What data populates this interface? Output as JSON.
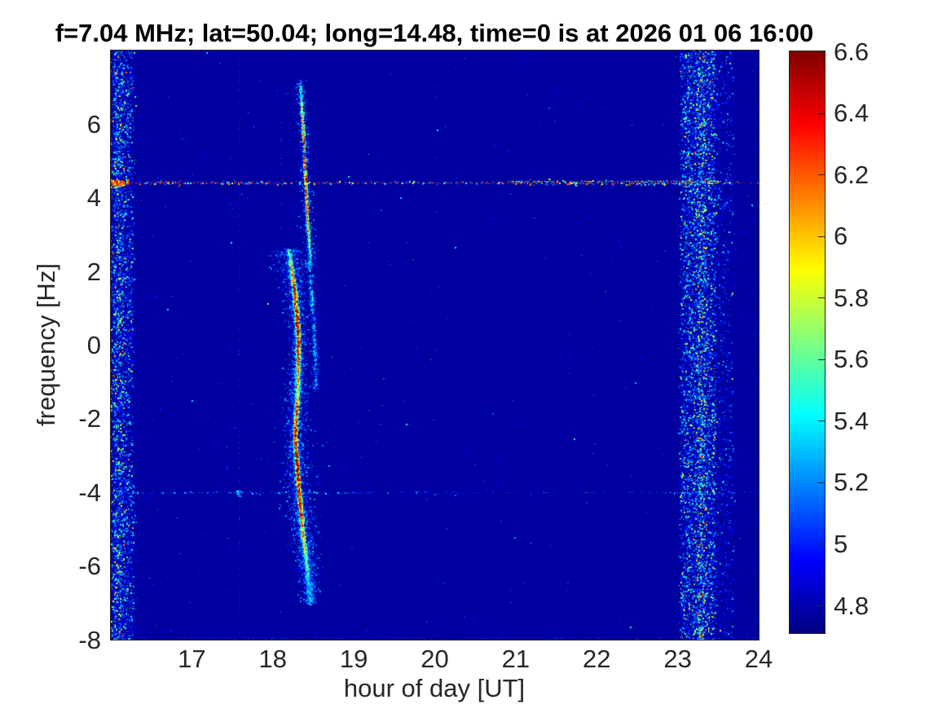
{
  "chart_data": {
    "type": "heatmap",
    "title": "f=7.04 MHz;  lat=50.04; long=14.48, time=0 is at 2026 01 06 16:00",
    "xlabel": "hour of day [UT]",
    "ylabel": "frequency [Hz]",
    "xlim": [
      16,
      24
    ],
    "ylim": [
      -8,
      8
    ],
    "xticks": [
      17,
      18,
      19,
      20,
      21,
      22,
      23,
      24
    ],
    "yticks": [
      6,
      4,
      2,
      0,
      -2,
      -4,
      -6,
      -8
    ],
    "grid": false,
    "colormap": "jet",
    "background_value": 4.77,
    "colorbar": {
      "position": "right",
      "min": 4.71,
      "max": 6.6,
      "ticks": [
        6.6,
        6.4,
        6.2,
        6,
        5.8,
        5.6,
        5.4,
        5.2,
        5,
        4.8
      ]
    },
    "features": [
      {
        "kind": "noise",
        "name": "background-speckle",
        "n": 2600,
        "v": [
          4.78,
          5.02
        ]
      },
      {
        "kind": "noise",
        "name": "background-speckle-bright",
        "n": 130,
        "v": [
          5.0,
          5.5
        ]
      },
      {
        "kind": "vband",
        "name": "noise-band-left",
        "x0": 16.0,
        "x1": 16.27,
        "n": 4200,
        "vmin": 4.82,
        "escale": 0.28,
        "hot_p": 0.03,
        "hot_v": [
          5.6,
          0.7
        ]
      },
      {
        "kind": "vband",
        "name": "noise-band-left-core",
        "x0": 16.04,
        "x1": 16.13,
        "n": 800,
        "vmin": 4.95,
        "escale": 0.35,
        "hot_p": 0.08,
        "hot_v": [
          5.6,
          0.6
        ]
      },
      {
        "kind": "vband",
        "name": "noise-band-right",
        "x0": 23.03,
        "x1": 23.46,
        "n": 7800,
        "vmin": 4.82,
        "escale": 0.3,
        "hot_p": 0.05,
        "hot_v": [
          5.5,
          0.7
        ]
      },
      {
        "kind": "vband",
        "name": "noise-band-right-core",
        "x0": 23.24,
        "x1": 23.33,
        "n": 900,
        "vmin": 5.0,
        "escale": 0.4,
        "hot_p": 0.12,
        "hot_v": [
          5.7,
          0.6
        ]
      },
      {
        "kind": "vband",
        "name": "noise-band-right-halo",
        "x0": 23.44,
        "x1": 23.68,
        "n": 1500,
        "vmin": 4.79,
        "escale": 0.18,
        "hot_p": 0.01,
        "hot_v": [
          5.5,
          0.4
        ]
      },
      {
        "kind": "vline",
        "name": "faint-vertical-line-1735ut",
        "x": 17.58,
        "f0": 8,
        "f1": -8,
        "prob": 0.42,
        "v": [
          4.82,
          5.16
        ]
      },
      {
        "kind": "vline",
        "name": "faint-vertical-segment",
        "x": 18.1,
        "f0": 6.3,
        "f1": 2.7,
        "prob": 0.2,
        "v": [
          4.85,
          5.3
        ]
      },
      {
        "kind": "hline",
        "name": "interference-line-minus4hz",
        "y": -4.0,
        "x0": 16,
        "x1": 24,
        "prob": 0.36,
        "v": [
          4.85,
          5.2
        ]
      },
      {
        "kind": "speckles",
        "y": -4.0,
        "x0": 16.2,
        "x1": 20.3,
        "n": 90,
        "v": [
          4.9,
          5.45
        ],
        "ysig": 0.8
      },
      {
        "kind": "speckles",
        "y": -4.0,
        "x0": 22.8,
        "x1": 23.7,
        "n": 40,
        "v": [
          4.9,
          5.5
        ],
        "ysig": 0.8
      },
      {
        "kind": "blob",
        "name": "crossing-spot",
        "x": 17.58,
        "y": -4.0,
        "xsig": 1.2,
        "ysig": 2.5,
        "n": 22,
        "v": [
          5.0,
          5.6
        ]
      },
      {
        "kind": "hline",
        "name": "carrier-line-4p4hz",
        "y": 4.42,
        "x0": 16,
        "x1": 24,
        "prob": 0.8,
        "v": [
          6.05,
          6.5
        ]
      },
      {
        "kind": "hline",
        "name": "carrier-line-4p4hz-upper",
        "y": 4.47,
        "x0": 20.9,
        "x1": 23.6,
        "prob": 0.7,
        "v": [
          5.5,
          6.05
        ]
      },
      {
        "kind": "hline",
        "name": "bottom-edge-row",
        "y": -7.95,
        "x0": 16,
        "x1": 24,
        "prob": 0.6,
        "v": [
          4.85,
          5.1
        ]
      },
      {
        "kind": "streak",
        "name": "doppler-trace-upper",
        "pts": [
          [
            18.33,
            7.2
          ],
          [
            18.37,
            5.8
          ],
          [
            18.4,
            4.4
          ],
          [
            18.43,
            3.2
          ],
          [
            18.46,
            2.1
          ]
        ],
        "n": 1500,
        "amp": [
          [
            0,
            0.1
          ],
          [
            0.15,
            0.5
          ],
          [
            0.3,
            0.85
          ],
          [
            0.55,
            0.95
          ],
          [
            0.75,
            0.7
          ],
          [
            0.9,
            0.3
          ],
          [
            1,
            0.1
          ]
        ],
        "sigma": [
          [
            0,
            3
          ],
          [
            0.5,
            4
          ],
          [
            1,
            6
          ]
        ],
        "core_sigma": 1.3,
        "gain": 1.5,
        "vmax": 6.45
      },
      {
        "kind": "streak",
        "name": "doppler-trace-main",
        "pts": [
          [
            18.19,
            2.6
          ],
          [
            18.27,
            1.4
          ],
          [
            18.31,
            0.2
          ],
          [
            18.3,
            -1.2
          ],
          [
            18.27,
            -2.4
          ],
          [
            18.31,
            -3.8
          ],
          [
            18.36,
            -5.0
          ],
          [
            18.42,
            -6.1
          ],
          [
            18.46,
            -7.0
          ]
        ],
        "n": 7000,
        "amp": [
          [
            0,
            0.2
          ],
          [
            0.1,
            0.85
          ],
          [
            0.2,
            1
          ],
          [
            0.3,
            0.8
          ],
          [
            0.4,
            0.5
          ],
          [
            0.5,
            0.85
          ],
          [
            0.62,
            1
          ],
          [
            0.72,
            0.9
          ],
          [
            0.8,
            0.55
          ],
          [
            0.9,
            0.25
          ],
          [
            1,
            0.07
          ]
        ],
        "sigma": [
          [
            0,
            11
          ],
          [
            0.15,
            8
          ],
          [
            0.35,
            6
          ],
          [
            0.5,
            9
          ],
          [
            0.7,
            10
          ],
          [
            0.85,
            7
          ],
          [
            1,
            5
          ]
        ],
        "core_sigma": 2.2,
        "gain": 1.7,
        "vmax": 6.55
      },
      {
        "kind": "streak",
        "name": "doppler-trace-secondary",
        "pts": [
          [
            18.44,
            2.3
          ],
          [
            18.5,
            0.5
          ],
          [
            18.53,
            -1.2
          ]
        ],
        "n": 420,
        "amp": [
          [
            0,
            0.3
          ],
          [
            0.5,
            0.35
          ],
          [
            1,
            0.15
          ]
        ],
        "sigma": [
          [
            0,
            2.5
          ],
          [
            1,
            3
          ]
        ],
        "core_sigma": 1.5,
        "gain": 0.8,
        "vmax": 5.9
      },
      {
        "kind": "speckles",
        "y": 4.42,
        "x0": 16.3,
        "x1": 18.3,
        "n": 110,
        "v": [
          4.95,
          6.3
        ],
        "ysig": 1.3
      },
      {
        "kind": "speckles",
        "y": 4.42,
        "x0": 18.3,
        "x1": 20.9,
        "n": 70,
        "v": [
          4.95,
          6.2
        ],
        "ysig": 1.1
      },
      {
        "kind": "speckles",
        "y": 4.42,
        "x0": 20.9,
        "x1": 23.65,
        "n": 230,
        "v": [
          4.95,
          6.35
        ],
        "ysig": 1.5
      },
      {
        "kind": "blob",
        "name": "bright-spot-left-crossing",
        "x": 16.07,
        "y": 4.42,
        "xsig": 7,
        "ysig": 2.0,
        "n": 140,
        "v": [
          5.7,
          6.5
        ]
      },
      {
        "kind": "dots",
        "name": "isolated-echo-dots",
        "pts": [
          [
            17.93,
            1.15,
            5.95
          ],
          [
            22.47,
            -1.0,
            5.3
          ]
        ]
      }
    ]
  }
}
